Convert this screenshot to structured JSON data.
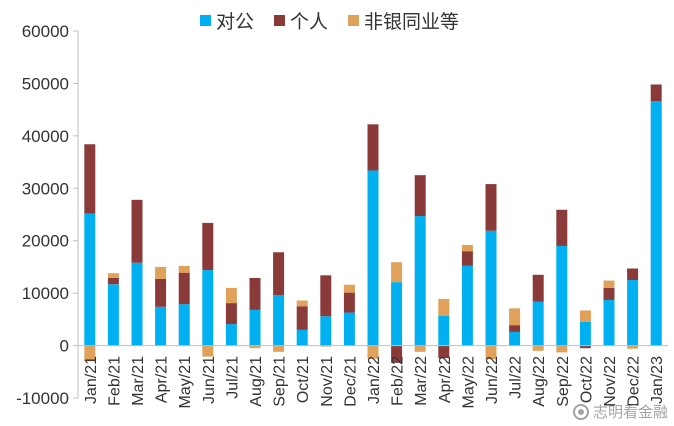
{
  "chart_data": {
    "type": "bar",
    "stacked": true,
    "categories": [
      "Jan/21",
      "Feb/21",
      "Mar/21",
      "Apr/21",
      "May/21",
      "Jun/21",
      "Jul/21",
      "Aug/21",
      "Sep/21",
      "Oct/21",
      "Nov/21",
      "Dec/21",
      "Jan/22",
      "Feb/22",
      "Mar/22",
      "Apr/22",
      "May/22",
      "Jun/22",
      "Jul/22",
      "Aug/22",
      "Sep/22",
      "Oct/22",
      "Nov/22",
      "Dec/22",
      "Jan/23"
    ],
    "series": [
      {
        "name": "对公",
        "color": "#00B0F0",
        "values": [
          25200,
          11700,
          15800,
          7400,
          7900,
          14400,
          4100,
          6800,
          9600,
          3000,
          5600,
          6300,
          33400,
          12100,
          24700,
          5700,
          15200,
          21900,
          2600,
          8400,
          19000,
          4500,
          8700,
          12500,
          46600
        ]
      },
      {
        "name": "个人",
        "color": "#8B3A3A",
        "values": [
          13200,
          1200,
          12000,
          5300,
          6000,
          9000,
          4000,
          6100,
          8200,
          4500,
          7800,
          3800,
          8800,
          -3300,
          7800,
          -2400,
          2800,
          8900,
          1300,
          5100,
          6900,
          -500,
          2300,
          2200,
          3200
        ]
      },
      {
        "name": "非银同业等",
        "color": "#E0A15A",
        "values": [
          -3000,
          900,
          0,
          2300,
          1300,
          -2100,
          2900,
          -500,
          -1200,
          1100,
          -200,
          1500,
          -2500,
          3800,
          -1200,
          3200,
          1200,
          -2600,
          3200,
          -1000,
          -1300,
          2200,
          1400,
          -600,
          0
        ]
      }
    ],
    "ylim": [
      -10000,
      60000
    ],
    "yticks": [
      -10000,
      0,
      10000,
      20000,
      30000,
      40000,
      50000,
      60000
    ],
    "legend_position": "top-center",
    "grid": false
  },
  "legend": {
    "items": [
      {
        "label": "对公",
        "color": "#00B0F0"
      },
      {
        "label": "个人",
        "color": "#8B3A3A"
      },
      {
        "label": "非银同业等",
        "color": "#E0A15A"
      }
    ]
  },
  "watermark": {
    "text": "志明看金融",
    "icon": "wechat-circle-icon"
  }
}
